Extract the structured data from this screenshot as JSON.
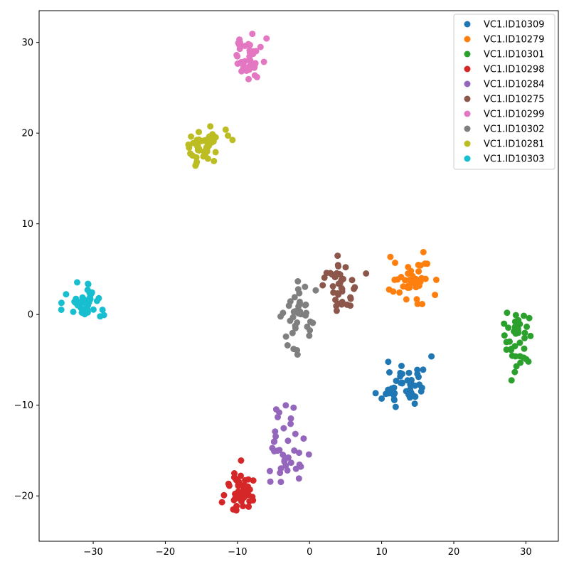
{
  "chart_data": {
    "type": "scatter",
    "title": "",
    "xlabel": "",
    "ylabel": "",
    "xlim": [
      -37.5,
      34.5
    ],
    "ylim": [
      -25,
      33.5
    ],
    "xticks": [
      -30,
      -20,
      -10,
      0,
      10,
      20,
      30
    ],
    "yticks": [
      -20,
      -10,
      0,
      10,
      20,
      30
    ],
    "grid": false,
    "legend_position": "top-right",
    "series": [
      {
        "name": "VC1.ID10309",
        "color": "#1f77b4",
        "center": [
          13.2,
          -7.6
        ],
        "spread": [
          1.6,
          1.5
        ],
        "count": 45,
        "seed": 11
      },
      {
        "name": "VC1.ID10279",
        "color": "#ff7f0e",
        "center": [
          14.0,
          3.6
        ],
        "spread": [
          1.6,
          1.3
        ],
        "count": 40,
        "seed": 22
      },
      {
        "name": "VC1.ID10301",
        "color": "#2ca02c",
        "center": [
          28.7,
          -3.2
        ],
        "spread": [
          0.9,
          1.8
        ],
        "count": 40,
        "seed": 33
      },
      {
        "name": "VC1.ID10298",
        "color": "#d62728",
        "center": [
          -9.6,
          -19.7
        ],
        "spread": [
          1.0,
          1.5
        ],
        "count": 45,
        "seed": 44
      },
      {
        "name": "VC1.ID10284",
        "color": "#9467bd",
        "center": [
          -3.2,
          -15.3
        ],
        "spread": [
          1.5,
          2.2
        ],
        "count": 38,
        "seed": 55
      },
      {
        "name": "VC1.ID10275",
        "color": "#8c564b",
        "center": [
          4.1,
          3.0
        ],
        "spread": [
          1.3,
          1.5
        ],
        "count": 38,
        "seed": 66
      },
      {
        "name": "VC1.ID10299",
        "color": "#e377c2",
        "center": [
          -8.6,
          28.3
        ],
        "spread": [
          1.1,
          1.3
        ],
        "count": 42,
        "seed": 77
      },
      {
        "name": "VC1.ID10302",
        "color": "#7f7f7f",
        "center": [
          -1.5,
          0.0
        ],
        "spread": [
          1.1,
          1.8
        ],
        "count": 42,
        "seed": 88
      },
      {
        "name": "VC1.ID10281",
        "color": "#bcbd22",
        "center": [
          -14.5,
          18.5
        ],
        "spread": [
          1.3,
          1.1
        ],
        "count": 48,
        "seed": 99
      },
      {
        "name": "VC1.ID10303",
        "color": "#17becf",
        "center": [
          -31.5,
          1.3
        ],
        "spread": [
          1.2,
          1.1
        ],
        "count": 48,
        "seed": 111
      }
    ]
  }
}
